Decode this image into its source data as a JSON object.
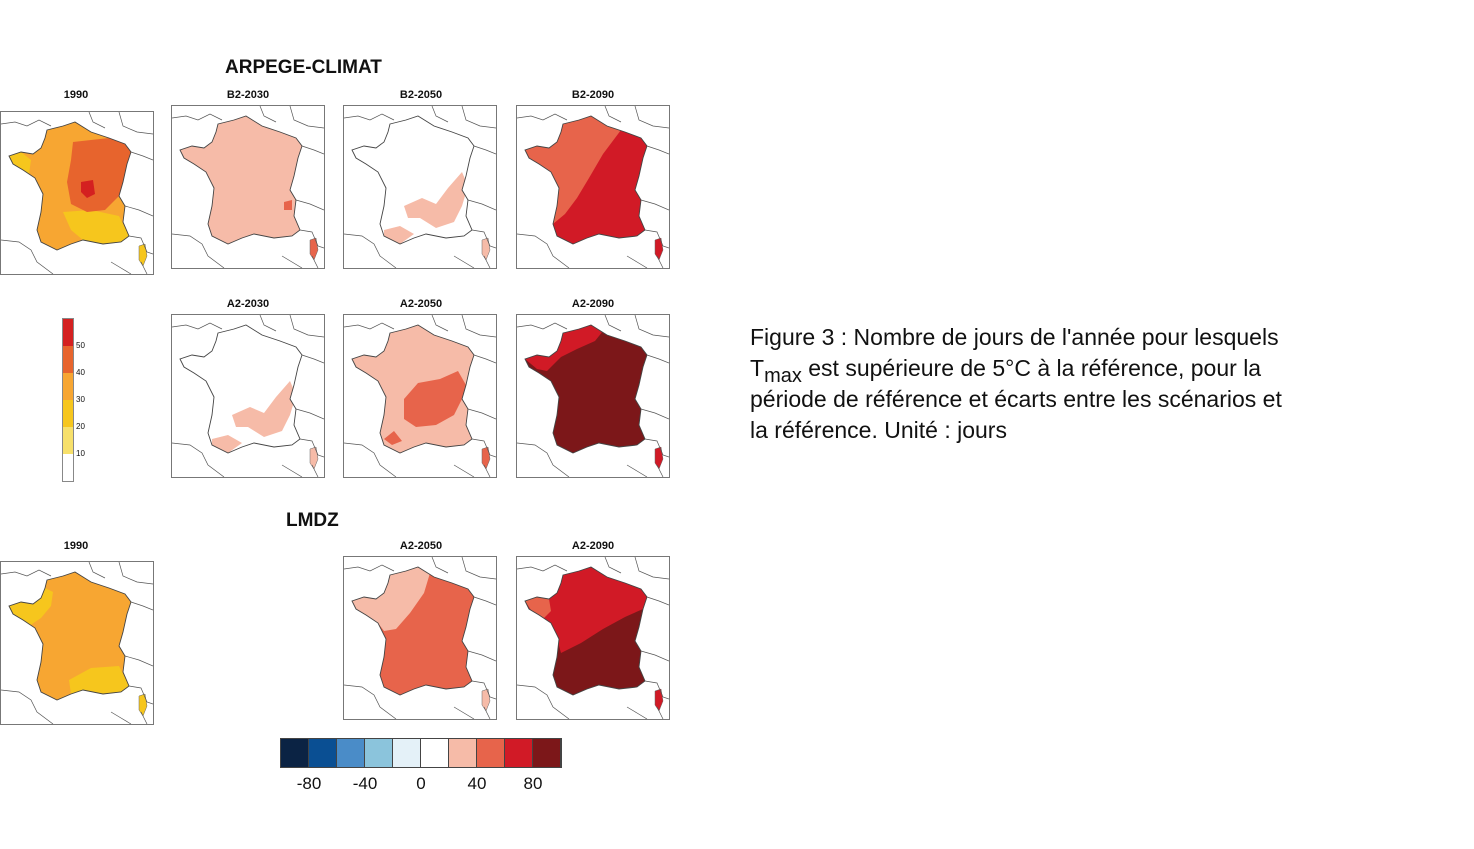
{
  "sections": {
    "arpege": "ARPEGE-CLIMAT",
    "lmdz": "LMDZ"
  },
  "maps": [
    {
      "id": "arpege-1990",
      "title": "1990",
      "style": "ref-arpege",
      "fills": [
        "#f7a632",
        "#f6c61d",
        "#e7642d",
        "#d42020"
      ]
    },
    {
      "id": "arpege-b2-2030",
      "title": "B2-2030",
      "style": "uniform",
      "fills": [
        "#f6bba8",
        "#e7644b"
      ]
    },
    {
      "id": "arpege-b2-2050",
      "title": "B2-2050",
      "style": "south-patch",
      "fills": [
        "#ffffff",
        "#f6bba8"
      ]
    },
    {
      "id": "arpege-b2-2090",
      "title": "B2-2090",
      "style": "split-east",
      "fills": [
        "#e7644b",
        "#d11a26"
      ]
    },
    {
      "id": "arpege-a2-2030",
      "title": "A2-2030",
      "style": "south-patch",
      "fills": [
        "#ffffff",
        "#f6bba8"
      ]
    },
    {
      "id": "arpege-a2-2050",
      "title": "A2-2050",
      "style": "center-patch",
      "fills": [
        "#f6bba8",
        "#e7644b"
      ]
    },
    {
      "id": "arpege-a2-2090",
      "title": "A2-2090",
      "style": "dark",
      "fills": [
        "#7c1719",
        "#d11a26"
      ]
    },
    {
      "id": "lmdz-1990",
      "title": "1990",
      "style": "ref-lmdz",
      "fills": [
        "#f7a632",
        "#f6c61d"
      ]
    },
    {
      "id": "lmdz-a2-2050",
      "title": "A2-2050",
      "style": "split-diag",
      "fills": [
        "#e7644b",
        "#f6bba8"
      ]
    },
    {
      "id": "lmdz-a2-2090",
      "title": "A2-2090",
      "style": "split-diag-dark",
      "fills": [
        "#7c1719",
        "#d11a26",
        "#e7644b"
      ]
    }
  ],
  "seq_legend": {
    "labels": [
      "50",
      "40",
      "30",
      "20",
      "10"
    ],
    "colors": [
      "#d42020",
      "#e7642d",
      "#f7a632",
      "#f6c61d",
      "#f7e06a",
      "#ffffff"
    ]
  },
  "div_legend": {
    "colors": [
      "#0b2344",
      "#0a4f93",
      "#4a8cc8",
      "#8bc4dc",
      "#e4f1f8",
      "#ffffff",
      "#f6bba8",
      "#e7644b",
      "#d11a26",
      "#7c1719"
    ],
    "labels": [
      "-80",
      "-40",
      "0",
      "40",
      "80"
    ]
  },
  "caption": {
    "line1": "Figure 3 : Nombre de jours de l'année pour lesquels",
    "t": "T",
    "sub": "max",
    "line2_rest": " est supérieure de 5°C à la référence, pour la",
    "line3": "période de référence et écarts entre les scénarios et",
    "line4": "la référence. Unité : jours"
  }
}
